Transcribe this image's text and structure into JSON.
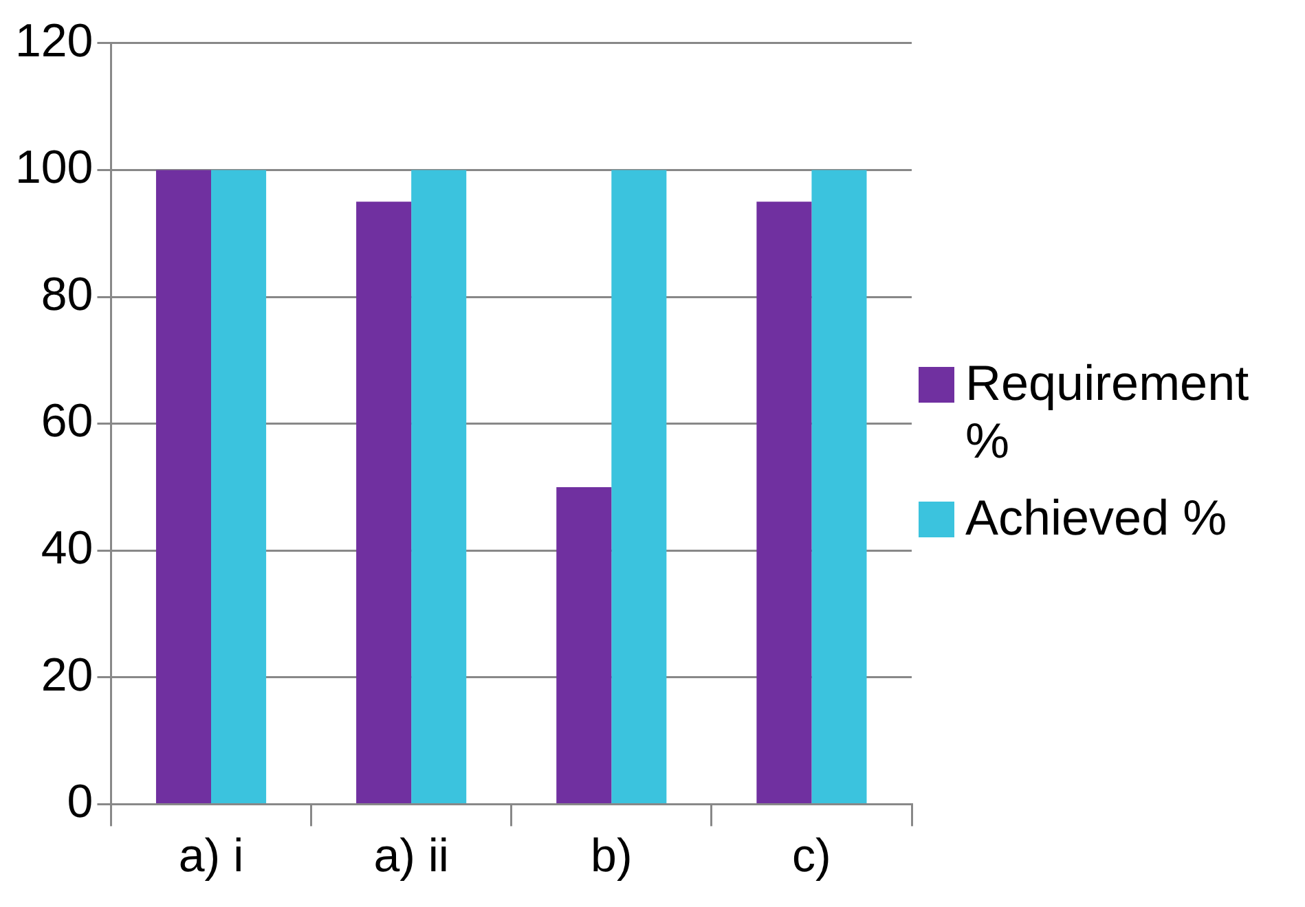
{
  "chart_data": {
    "type": "bar",
    "categories": [
      "a) i",
      "a) ii",
      "b)",
      "c)"
    ],
    "series": [
      {
        "name": "Requirement %",
        "color": "#7030a0",
        "values": [
          100,
          95,
          50,
          95
        ]
      },
      {
        "name": "Achieved %",
        "color": "#3bc3de",
        "values": [
          100,
          100,
          100,
          100
        ]
      }
    ],
    "ylim": [
      0,
      120
    ],
    "yticks": [
      0,
      20,
      40,
      60,
      80,
      100,
      120
    ],
    "grid": "y",
    "legend": "right"
  }
}
